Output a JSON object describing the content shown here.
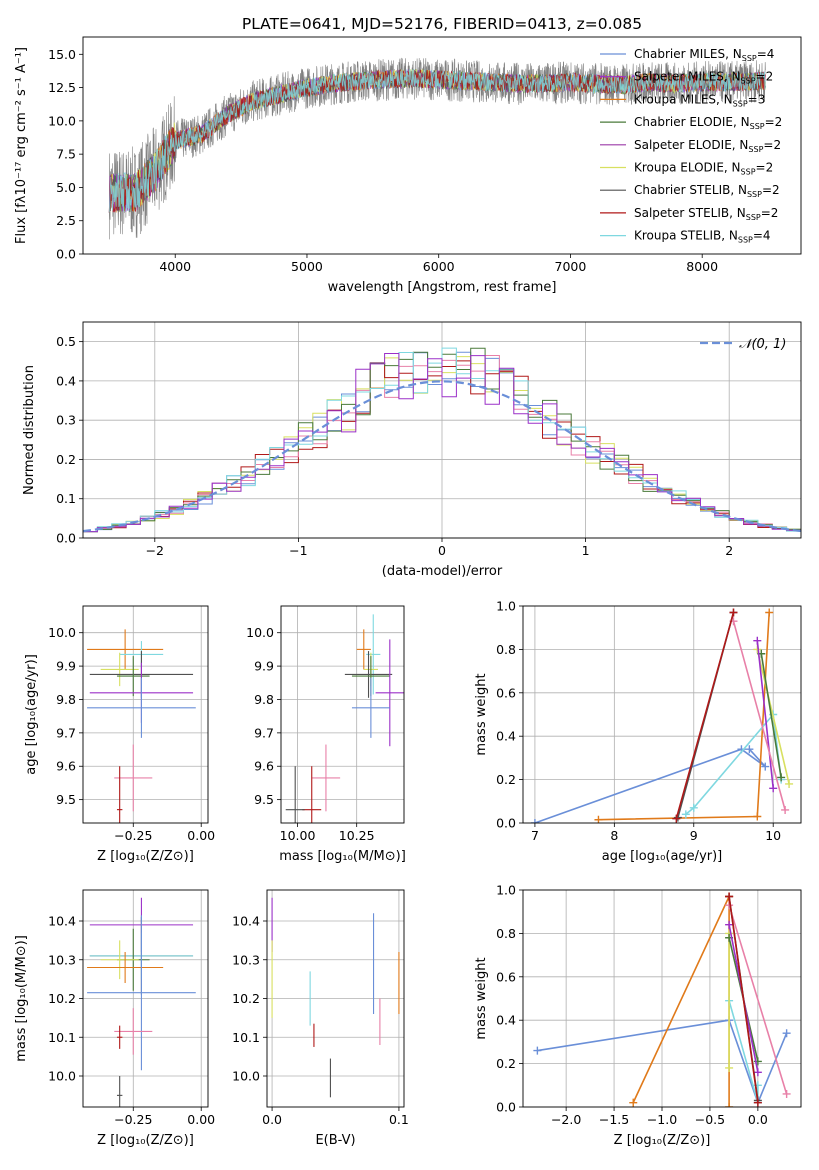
{
  "figure": {
    "title": "PLATE=0641, MJD=52176, FIBERID=0413, z=0.085"
  },
  "colors": {
    "Chabrier MILES": "#6a8fd8",
    "Salpeter MILES": "#9b30c8",
    "Kroupa MILES": "#e07a1a",
    "Chabrier ELODIE": "#4a7a3a",
    "Salpeter ELODIE": "#9b3aa8",
    "Kroupa ELODIE": "#d8e060",
    "Chabrier STELIB": "#505050",
    "Salpeter STELIB": "#b01818",
    "Kroupa STELIB": "#7fd8e0",
    "Pink": "#e880a8",
    "Normal": "#6a8fd8",
    "Data": "#808080"
  },
  "chart_data": [
    {
      "id": "spectrum",
      "type": "line",
      "title": "PLATE=0641, MJD=52176, FIBERID=0413, z=0.085",
      "xlabel": "wavelength [Angstrom, rest frame]",
      "ylabel": "Flux [fλ10⁻¹⁷ erg cm⁻² s⁻¹ A⁻¹]",
      "xlim": [
        3300,
        8750
      ],
      "ylim": [
        0,
        16.3
      ],
      "xticks": [
        4000,
        5000,
        6000,
        7000,
        8000
      ],
      "yticks": [
        0.0,
        2.5,
        5.0,
        7.5,
        10.0,
        12.5,
        15.0
      ],
      "xstart": 3500,
      "xend": 8480,
      "continuum": [
        [
          3500,
          4.6
        ],
        [
          3700,
          4.6
        ],
        [
          3850,
          6.2
        ],
        [
          3950,
          7.8
        ],
        [
          4000,
          8.5
        ],
        [
          4200,
          9.0
        ],
        [
          4400,
          10.5
        ],
        [
          4600,
          11.5
        ],
        [
          4800,
          12.0
        ],
        [
          5000,
          12.5
        ],
        [
          5200,
          12.8
        ],
        [
          5400,
          13.0
        ],
        [
          5600,
          13.1
        ],
        [
          5800,
          13.2
        ],
        [
          6000,
          13.1
        ],
        [
          6200,
          13.0
        ],
        [
          6400,
          12.9
        ],
        [
          6600,
          12.8
        ],
        [
          6800,
          12.8
        ],
        [
          7000,
          12.9
        ],
        [
          7200,
          12.8
        ],
        [
          7400,
          12.7
        ],
        [
          7600,
          12.9
        ],
        [
          7800,
          12.8
        ],
        [
          8000,
          12.9
        ],
        [
          8200,
          12.9
        ],
        [
          8480,
          13.0
        ]
      ],
      "legend": [
        {
          "label": "Chabrier MILES, N",
          "sub": "SSP",
          "suffix": "=4",
          "color": "Chabrier MILES"
        },
        {
          "label": "Salpeter MILES, N",
          "sub": "SSP",
          "suffix": "=2",
          "color": "Salpeter MILES"
        },
        {
          "label": "Kroupa MILES, N",
          "sub": "SSP",
          "suffix": "=3",
          "color": "Kroupa MILES"
        },
        {
          "label": "Chabrier ELODIE, N",
          "sub": "SSP",
          "suffix": "=2",
          "color": "Chabrier ELODIE"
        },
        {
          "label": "Salpeter ELODIE, N",
          "sub": "SSP",
          "suffix": "=2",
          "color": "Salpeter ELODIE"
        },
        {
          "label": "Kroupa ELODIE, N",
          "sub": "SSP",
          "suffix": "=2",
          "color": "Kroupa ELODIE"
        },
        {
          "label": "Chabrier STELIB, N",
          "sub": "SSP",
          "suffix": "=2",
          "color": "Chabrier STELIB"
        },
        {
          "label": "Salpeter STELIB, N",
          "sub": "SSP",
          "suffix": "=2",
          "color": "Salpeter STELIB"
        },
        {
          "label": "Kroupa STELIB, N",
          "sub": "SSP",
          "suffix": "=4",
          "color": "Kroupa STELIB"
        }
      ]
    },
    {
      "id": "residuals",
      "type": "histogram",
      "xlabel": "(data-model)/error",
      "ylabel": "Normed distribution",
      "xlim": [
        -2.5,
        2.5
      ],
      "ylim": [
        0,
        0.55
      ],
      "xticks": [
        -2,
        -1,
        0,
        1,
        2
      ],
      "yticks": [
        0.0,
        0.1,
        0.2,
        0.3,
        0.4,
        0.5
      ],
      "normal_label": "𝒩(0, 1)",
      "bin_width": 0.1
    },
    {
      "id": "age_vs_Z",
      "type": "errorbar",
      "xlabel": "Z [log₁₀(Z/Z⊙)]",
      "ylabel": "age  [log₁₀(age/yr)]",
      "xlim": [
        -0.435,
        0.025
      ],
      "ylim": [
        9.43,
        10.08
      ],
      "xticks": [
        -0.25,
        0.0
      ],
      "xticklabels": [
        "−0.25",
        "0.00"
      ],
      "yticks": [
        9.5,
        9.6,
        9.7,
        9.8,
        9.9,
        10.0
      ],
      "points": [
        {
          "c": "Kroupa MILES",
          "x": -0.28,
          "y": 9.95,
          "xe": 0.14,
          "ye": 0.06
        },
        {
          "c": "Kroupa STELIB",
          "x": -0.22,
          "y": 9.935,
          "xe": 0.08,
          "ye": 0.04
        },
        {
          "c": "Kroupa ELODIE",
          "x": -0.3,
          "y": 9.89,
          "xe": 0.07,
          "ye": 0.05
        },
        {
          "c": "Chabrier STELIB",
          "x": -0.22,
          "y": 9.875,
          "xe": 0.19,
          "ye": 0.07
        },
        {
          "c": "Chabrier ELODIE",
          "x": -0.25,
          "y": 9.87,
          "xe": 0.06,
          "ye": 0.06
        },
        {
          "c": "Salpeter MILES",
          "x": -0.22,
          "y": 9.82,
          "xe": 0.19,
          "ye": 0.09
        },
        {
          "c": "Chabrier MILES",
          "x": -0.22,
          "y": 9.775,
          "xe": 0.2,
          "ye": 0.09
        },
        {
          "c": "Pink",
          "x": -0.25,
          "y": 9.565,
          "xe": 0.07,
          "ye": 0.1
        },
        {
          "c": "Salpeter STELIB",
          "x": -0.3,
          "y": 9.47,
          "xe": 0.01,
          "ye": 0.13
        }
      ]
    },
    {
      "id": "age_vs_mass",
      "type": "errorbar",
      "xlabel": "mass [log₁₀(M/M⊙)]",
      "ylabel": "",
      "xlim": [
        9.93,
        10.45
      ],
      "ylim": [
        9.43,
        10.08
      ],
      "xticks": [
        10.0,
        10.25
      ],
      "xticklabels": [
        "10.00",
        "10.25"
      ],
      "yticks": [
        9.5,
        9.6,
        9.7,
        9.8,
        9.9,
        10.0
      ],
      "points": [
        {
          "c": "Kroupa MILES",
          "x": 10.28,
          "y": 9.95,
          "xe": 0.03,
          "ye": 0.06
        },
        {
          "c": "Kroupa STELIB",
          "x": 10.32,
          "y": 9.935,
          "xe": 0.03,
          "ye": 0.12
        },
        {
          "c": "Kroupa ELODIE",
          "x": 10.31,
          "y": 9.89,
          "xe": 0.03,
          "ye": 0.05
        },
        {
          "c": "Chabrier STELIB",
          "x": 10.3,
          "y": 9.875,
          "xe": 0.1,
          "ye": 0.07
        },
        {
          "c": "Chabrier ELODIE",
          "x": 10.31,
          "y": 9.87,
          "xe": 0.08,
          "ye": 0.06
        },
        {
          "c": "Salpeter MILES",
          "x": 10.39,
          "y": 9.82,
          "xe": 0.06,
          "ye": 0.16
        },
        {
          "c": "Chabrier MILES",
          "x": 10.31,
          "y": 9.775,
          "xe": 0.08,
          "ye": 0.09
        },
        {
          "c": "Pink",
          "x": 10.12,
          "y": 9.565,
          "xe": 0.06,
          "ye": 0.1
        },
        {
          "c": "Salpeter STELIB",
          "x": 10.06,
          "y": 9.47,
          "xe": 0.04,
          "ye": 0.13
        },
        {
          "c": "Chabrier STELIB",
          "x": 9.99,
          "y": 9.47,
          "xe": 0.04,
          "ye": 0.13
        }
      ]
    },
    {
      "id": "weight_vs_age",
      "type": "line",
      "xlabel": "age  [log₁₀(age/yr)]",
      "ylabel": "mass weight",
      "xlim": [
        6.85,
        10.35
      ],
      "ylim": [
        0,
        1.0
      ],
      "xticks": [
        7,
        8,
        9,
        10
      ],
      "yticks": [
        0.0,
        0.2,
        0.4,
        0.6,
        0.8,
        1.0
      ],
      "series": [
        {
          "c": "Chabrier MILES",
          "pts": [
            [
              7.0,
              0.0
            ],
            [
              9.6,
              0.34
            ],
            [
              9.9,
              0.26
            ],
            [
              9.7,
              0.34
            ]
          ]
        },
        {
          "c": "Kroupa MILES",
          "pts": [
            [
              7.8,
              0.015
            ],
            [
              9.8,
              0.03
            ],
            [
              9.95,
              0.97
            ]
          ]
        },
        {
          "c": "Kroupa STELIB",
          "pts": [
            [
              8.9,
              0.04
            ],
            [
              9.0,
              0.07
            ],
            [
              10.0,
              0.5
            ],
            [
              10.1,
              0.2
            ]
          ]
        },
        {
          "c": "Kroupa ELODIE",
          "pts": [
            [
              9.8,
              0.8
            ],
            [
              10.2,
              0.18
            ]
          ]
        },
        {
          "c": "Chabrier ELODIE",
          "pts": [
            [
              9.85,
              0.78
            ],
            [
              10.1,
              0.21
            ]
          ]
        },
        {
          "c": "Salpeter MILES",
          "pts": [
            [
              9.8,
              0.84
            ],
            [
              10.0,
              0.16
            ]
          ]
        },
        {
          "c": "Pink",
          "pts": [
            [
              9.5,
              0.93
            ],
            [
              10.15,
              0.06
            ]
          ]
        },
        {
          "c": "Chabrier STELIB",
          "pts": [
            [
              8.8,
              0.025
            ],
            [
              9.5,
              0.97
            ]
          ]
        },
        {
          "c": "Salpeter STELIB",
          "pts": [
            [
              8.78,
              0.02
            ],
            [
              9.5,
              0.97
            ]
          ]
        }
      ]
    },
    {
      "id": "mass_vs_Z",
      "type": "errorbar",
      "xlabel": "Z [log₁₀(Z/Z⊙)]",
      "ylabel": "mass [log₁₀(M/M⊙)]",
      "xlim": [
        -0.435,
        0.025
      ],
      "ylim": [
        9.92,
        10.48
      ],
      "xticks": [
        -0.25,
        0.0
      ],
      "xticklabels": [
        "−0.25",
        "0.00"
      ],
      "yticks": [
        10.0,
        10.1,
        10.2,
        10.3,
        10.4
      ],
      "points": [
        {
          "c": "Salpeter MILES",
          "x": -0.22,
          "y": 10.39,
          "xe": 0.19,
          "ye": 0.07
        },
        {
          "c": "Chabrier STELIB",
          "x": -0.22,
          "y": 10.31,
          "xe": 0.19,
          "ye": 0.1
        },
        {
          "c": "Kroupa STELIB",
          "x": -0.22,
          "y": 10.31,
          "xe": 0.19,
          "ye": 0.06
        },
        {
          "c": "Chabrier ELODIE",
          "x": -0.25,
          "y": 10.3,
          "xe": 0.06,
          "ye": 0.08
        },
        {
          "c": "Kroupa ELODIE",
          "x": -0.3,
          "y": 10.3,
          "xe": 0.07,
          "ye": 0.05
        },
        {
          "c": "Kroupa MILES",
          "x": -0.28,
          "y": 10.28,
          "xe": 0.14,
          "ye": 0.04
        },
        {
          "c": "Chabrier MILES",
          "x": -0.22,
          "y": 10.215,
          "xe": 0.2,
          "ye": 0.2
        },
        {
          "c": "Pink",
          "x": -0.25,
          "y": 10.115,
          "xe": 0.07,
          "ye": 0.06
        },
        {
          "c": "Salpeter STELIB",
          "x": -0.3,
          "y": 10.1,
          "xe": 0.01,
          "ye": 0.03
        },
        {
          "c": "Chabrier STELIB",
          "x": -0.3,
          "y": 9.95,
          "xe": 0.01,
          "ye": 0.05
        }
      ]
    },
    {
      "id": "mass_vs_ebv",
      "type": "errorbar",
      "xlabel": "E(B-V)",
      "ylabel": "",
      "xlim": [
        -0.004,
        0.104
      ],
      "ylim": [
        9.92,
        10.48
      ],
      "xticks": [
        0.0,
        0.1
      ],
      "xticklabels": [
        "0.0",
        "0.1"
      ],
      "yticks": [
        10.0,
        10.1,
        10.2,
        10.3,
        10.4
      ],
      "points": [
        {
          "c": "Salpeter MILES",
          "x": 0.0,
          "y": 10.39,
          "xe": 0,
          "ye": 0.07
        },
        {
          "c": "Kroupa ELODIE",
          "x": 0.0,
          "y": 10.25,
          "xe": 0,
          "ye": 0.1
        },
        {
          "c": "Kroupa MILES",
          "x": 0.1,
          "y": 10.24,
          "xe": 0,
          "ye": 0.08
        },
        {
          "c": "Kroupa STELIB",
          "x": 0.03,
          "y": 10.2,
          "xe": 0,
          "ye": 0.07
        },
        {
          "c": "Chabrier MILES",
          "x": 0.08,
          "y": 10.29,
          "xe": 0,
          "ye": 0.13
        },
        {
          "c": "Pink",
          "x": 0.085,
          "y": 10.14,
          "xe": 0,
          "ye": 0.06
        },
        {
          "c": "Salpeter STELIB",
          "x": 0.033,
          "y": 10.105,
          "xe": 0,
          "ye": 0.03
        },
        {
          "c": "Chabrier STELIB",
          "x": 0.046,
          "y": 9.995,
          "xe": 0,
          "ye": 0.05
        }
      ]
    },
    {
      "id": "weight_vs_Z",
      "type": "line",
      "xlabel": "Z [log₁₀(Z/Z⊙)]",
      "ylabel": "mass weight",
      "xlim": [
        -2.45,
        0.45
      ],
      "ylim": [
        0,
        1.0
      ],
      "xticks": [
        -2.0,
        -1.5,
        -1.0,
        -0.5,
        0.0
      ],
      "xticklabels": [
        "−2.0",
        "−1.5",
        "−1.0",
        "−0.5",
        "0.0"
      ],
      "yticks": [
        0.0,
        0.2,
        0.4,
        0.6,
        0.8,
        1.0
      ],
      "series": [
        {
          "c": "Chabrier MILES",
          "pts": [
            [
              -2.3,
              0.26
            ],
            [
              -0.3,
              0.4
            ],
            [
              0.0,
              0.02
            ],
            [
              0.3,
              0.34
            ]
          ]
        },
        {
          "c": "Kroupa MILES",
          "pts": [
            [
              -1.3,
              0.02
            ],
            [
              -0.3,
              0.97
            ],
            [
              -0.3,
              0.0
            ]
          ]
        },
        {
          "c": "Kroupa STELIB",
          "pts": [
            [
              -0.3,
              0.49
            ],
            [
              0.0,
              0.02
            ],
            [
              0.0,
              0.1
            ]
          ]
        },
        {
          "c": "Kroupa ELODIE",
          "pts": [
            [
              -0.3,
              0.8
            ],
            [
              -0.3,
              0.18
            ]
          ]
        },
        {
          "c": "Chabrier ELODIE",
          "pts": [
            [
              -0.3,
              0.78
            ],
            [
              0.0,
              0.21
            ]
          ]
        },
        {
          "c": "Salpeter MILES",
          "pts": [
            [
              -0.3,
              0.84
            ],
            [
              0.0,
              0.16
            ]
          ]
        },
        {
          "c": "Pink",
          "pts": [
            [
              -0.3,
              0.93
            ],
            [
              0.3,
              0.06
            ]
          ]
        },
        {
          "c": "Chabrier STELIB",
          "pts": [
            [
              -0.3,
              0.97
            ],
            [
              0.0,
              0.03
            ]
          ]
        },
        {
          "c": "Salpeter STELIB",
          "pts": [
            [
              -0.3,
              0.97
            ],
            [
              0.0,
              0.02
            ]
          ]
        }
      ]
    }
  ]
}
